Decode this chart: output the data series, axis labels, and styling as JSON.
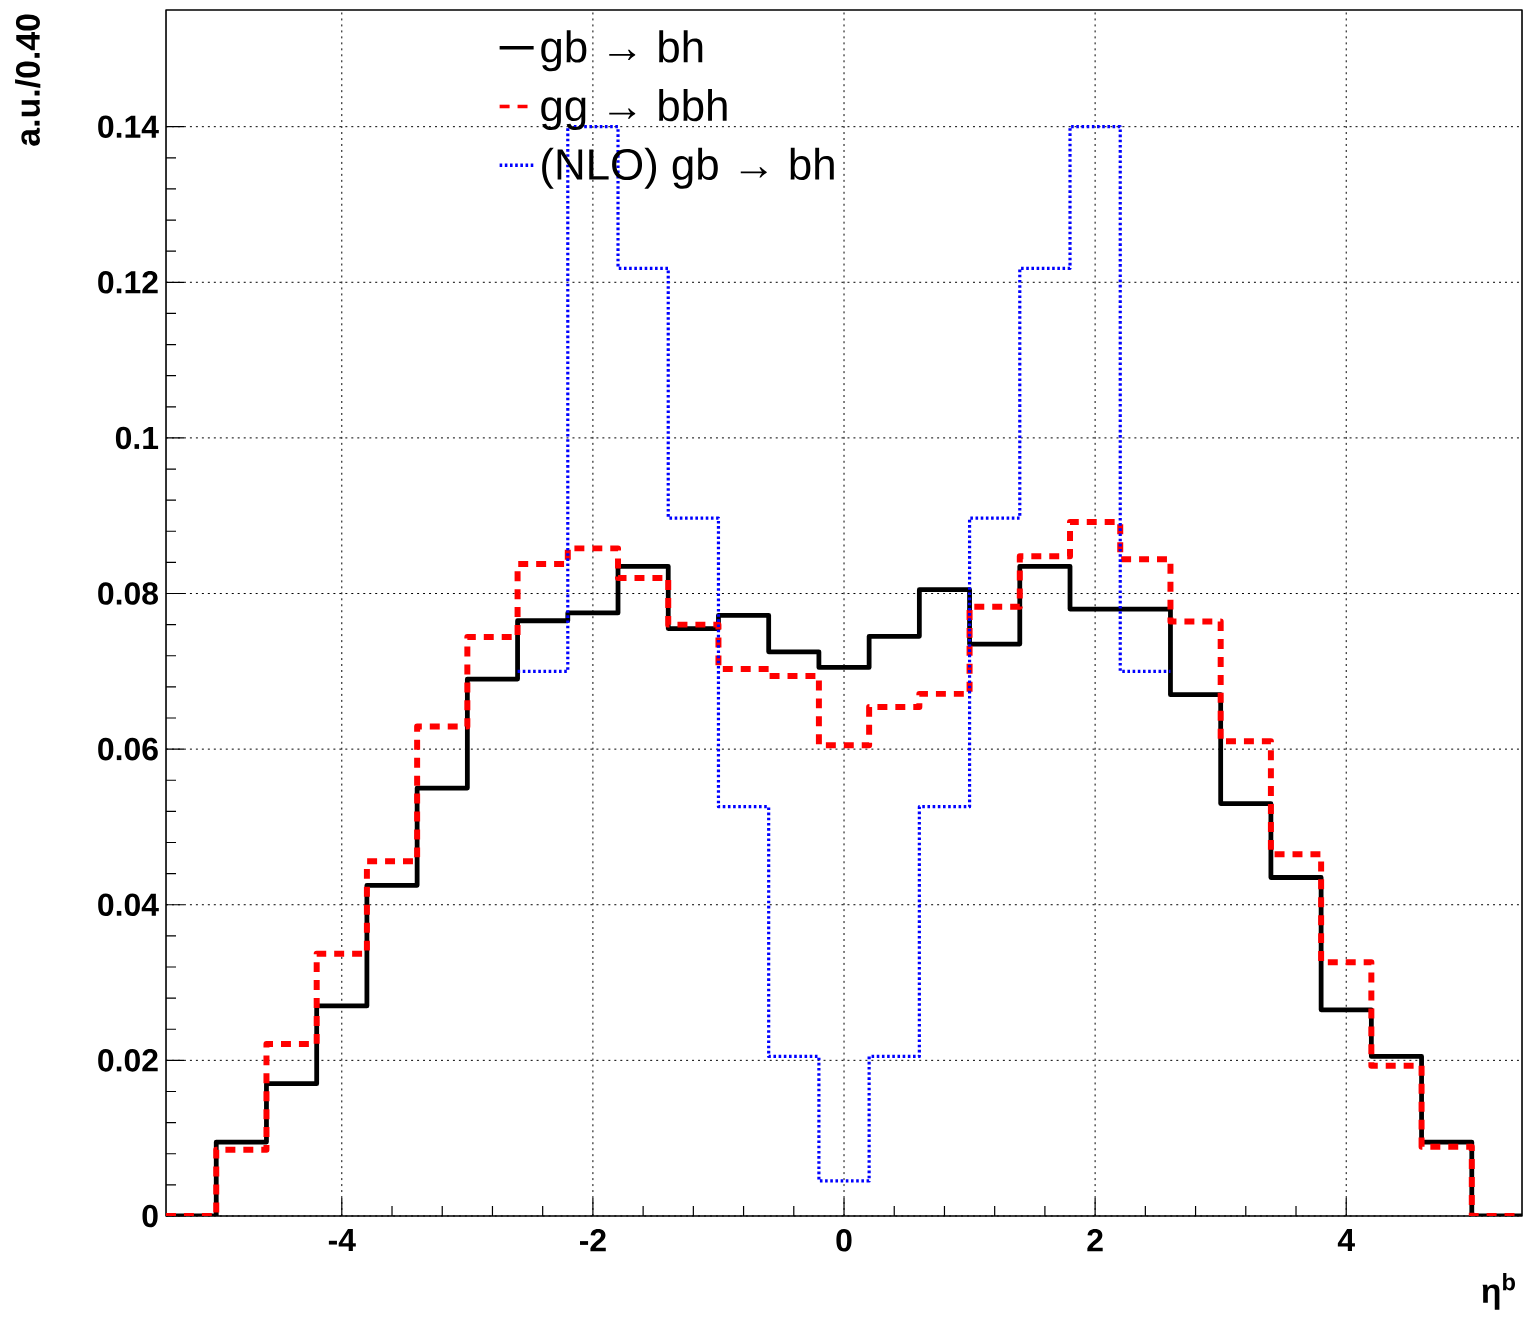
{
  "chart_data": {
    "type": "histogram",
    "xlabel": "η$^{b}$",
    "ylabel": "a.u./0.40",
    "bins": [
      -5.4,
      -5.0,
      -4.6,
      -4.2,
      -3.8,
      -3.4,
      -3.0,
      -2.6,
      -2.2,
      -1.8,
      -1.4,
      -1.0,
      -0.6,
      -0.2,
      0.2,
      0.6,
      1.0,
      1.4,
      1.8,
      2.2,
      2.6,
      3.0,
      3.4,
      3.8,
      4.2,
      4.6,
      5.0,
      5.4
    ],
    "series": [
      {
        "name": "gb → bh",
        "color": "#000000",
        "line_style": "solid",
        "values": [
          0,
          0.0095,
          0.017,
          0.027,
          0.0425,
          0.055,
          0.069,
          0.0765,
          0.0775,
          0.0835,
          0.0755,
          0.0772,
          0.0725,
          0.0705,
          0.0745,
          0.0805,
          0.0735,
          0.0835,
          0.078,
          0.078,
          0.067,
          0.053,
          0.0435,
          0.0265,
          0.0205,
          0.0095,
          0
        ]
      },
      {
        "name": "gg → bbh",
        "color": "#ff0000",
        "line_style": "dashed",
        "values": [
          0,
          0.0085,
          0.0221,
          0.0337,
          0.0456,
          0.0629,
          0.0744,
          0.0838,
          0.0858,
          0.082,
          0.076,
          0.0703,
          0.0694,
          0.0605,
          0.0654,
          0.0671,
          0.0783,
          0.0848,
          0.0892,
          0.0844,
          0.0764,
          0.061,
          0.0465,
          0.0326,
          0.0193,
          0.0089,
          0
        ]
      },
      {
        "name": "(NLO) gb → bh",
        "color": "#0000ff",
        "line_style": "dotted",
        "bins": [
          -2.6,
          -2.2,
          -1.8,
          -1.4,
          -1.0,
          -0.6,
          -0.2,
          0.2,
          0.6,
          1.0,
          1.4,
          1.8,
          2.2,
          2.6
        ],
        "values": [
          0.07,
          0.14,
          0.1218,
          0.0897,
          0.0526,
          0.0205,
          0.0045,
          0.0205,
          0.0526,
          0.0897,
          0.1218,
          0.14,
          0.07
        ]
      }
    ],
    "xlim": [
      -5.4,
      5.4
    ],
    "ylim": [
      0,
      0.155
    ],
    "xticks": [
      -4,
      -2,
      0,
      2,
      4
    ],
    "yticks": [
      0,
      0.02,
      0.04,
      0.06,
      0.08,
      0.1,
      0.12,
      0.14
    ],
    "grid": true,
    "legend": "top"
  }
}
